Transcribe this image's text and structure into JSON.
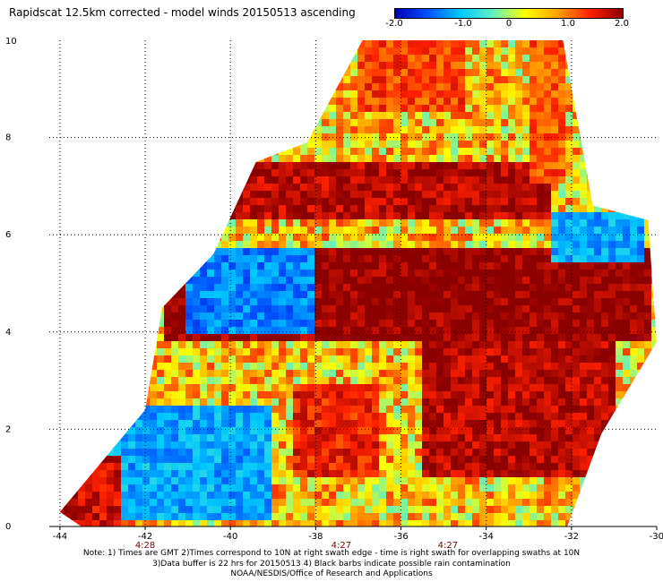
{
  "title": "Rapidscat 12.5km corrected - model winds 20150513 ascending",
  "colorbar": {
    "ticks": [
      "-2.0",
      "-1.0",
      "0",
      "1.0",
      "2.0"
    ],
    "tick_values": [
      -2.0,
      -1.0,
      0,
      1.0,
      2.0
    ],
    "colors": [
      "#0000b4",
      "#0050ff",
      "#00c8ff",
      "#60f0c0",
      "#ffff00",
      "#ffa000",
      "#ff2000",
      "#8c0000"
    ]
  },
  "chart_data": {
    "type": "heatmap",
    "title": "Rapidscat 12.5km corrected - model winds 20150513 ascending",
    "value_range": [
      -2.0,
      2.0
    ],
    "x_ticks": [
      "-44",
      "-42",
      "-40",
      "-38",
      "-36",
      "-34",
      "-32",
      "-30"
    ],
    "x_tick_values": [
      -44,
      -42,
      -40,
      -38,
      -36,
      -34,
      -32,
      -30
    ],
    "y_ticks": [
      "0",
      "2",
      "4",
      "6",
      "8",
      "10"
    ],
    "y_tick_values": [
      0,
      2,
      4,
      6,
      8,
      10
    ],
    "xlim": [
      -44.25,
      -30
    ],
    "ylim": [
      0,
      10
    ],
    "grid": "dotted",
    "time_labels": [
      {
        "x": -42,
        "label": "4:28"
      },
      {
        "x": -37.4,
        "label": "4:27"
      },
      {
        "x": -34.9,
        "label": "4:27"
      }
    ],
    "swath_polygon": [
      [
        -44,
        0.3
      ],
      [
        -42,
        2.4
      ],
      [
        -41.6,
        4.5
      ],
      [
        -40.4,
        5.6
      ],
      [
        -39.4,
        7.5
      ],
      [
        -38.2,
        7.9
      ],
      [
        -36.9,
        10.0
      ],
      [
        -34.9,
        10.0
      ],
      [
        -32.2,
        10.0
      ],
      [
        -31.5,
        6.6
      ],
      [
        -30.2,
        6.3
      ],
      [
        -30.1,
        5.0
      ],
      [
        -30.0,
        3.8
      ],
      [
        -31.3,
        1.9
      ],
      [
        -32.1,
        0.0
      ],
      [
        -43.5,
        0.0
      ]
    ],
    "field_regions": [
      {
        "description": "large band of high positive difference",
        "value": 2.0,
        "lon_range": [
          -41.5,
          -30.2
        ],
        "lat_range": [
          3.8,
          5.8
        ]
      },
      {
        "description": "positive band",
        "value": 1.8,
        "lon_range": [
          -40.5,
          -32.5
        ],
        "lat_range": [
          6.3,
          7.5
        ]
      },
      {
        "description": "negative patch",
        "value": -1.2,
        "lon_range": [
          -41.0,
          -38.0
        ],
        "lat_range": [
          4.0,
          5.8
        ]
      },
      {
        "description": "negative patch",
        "value": -1.0,
        "lon_range": [
          -43.0,
          -39.0
        ],
        "lat_range": [
          0.2,
          2.5
        ]
      },
      {
        "description": "negative patch",
        "value": -1.0,
        "lon_range": [
          -32.5,
          -30.3
        ],
        "lat_range": [
          5.5,
          6.4
        ]
      },
      {
        "description": "positive patch",
        "value": 1.8,
        "lon_range": [
          -35.5,
          -31.0
        ],
        "lat_range": [
          1.0,
          3.8
        ]
      },
      {
        "description": "positive patch",
        "value": 1.5,
        "lon_range": [
          -38.5,
          -36.5
        ],
        "lat_range": [
          1.0,
          3.0
        ]
      },
      {
        "description": "positive edge",
        "value": 1.7,
        "lon_range": [
          -44.0,
          -42.5
        ],
        "lat_range": [
          0.0,
          1.5
        ]
      },
      {
        "description": "positive top",
        "value": 1.3,
        "lon_range": [
          -37.0,
          -34.5
        ],
        "lat_range": [
          8.5,
          10.0
        ]
      },
      {
        "description": "positive top right",
        "value": 1.2,
        "lon_range": [
          -33.0,
          -32.2
        ],
        "lat_range": [
          7.0,
          10.0
        ]
      }
    ]
  },
  "notes": [
    "Note: 1) Times are GMT 2)Times correspond to 10N at right swath edge - time is right swath for overlapping swaths at 10N",
    "3)Data buffer is 22 hrs for 20150513 4) Black barbs indicate possible rain contamination",
    "NOAA/NESDIS/Office of Research and Applications"
  ]
}
